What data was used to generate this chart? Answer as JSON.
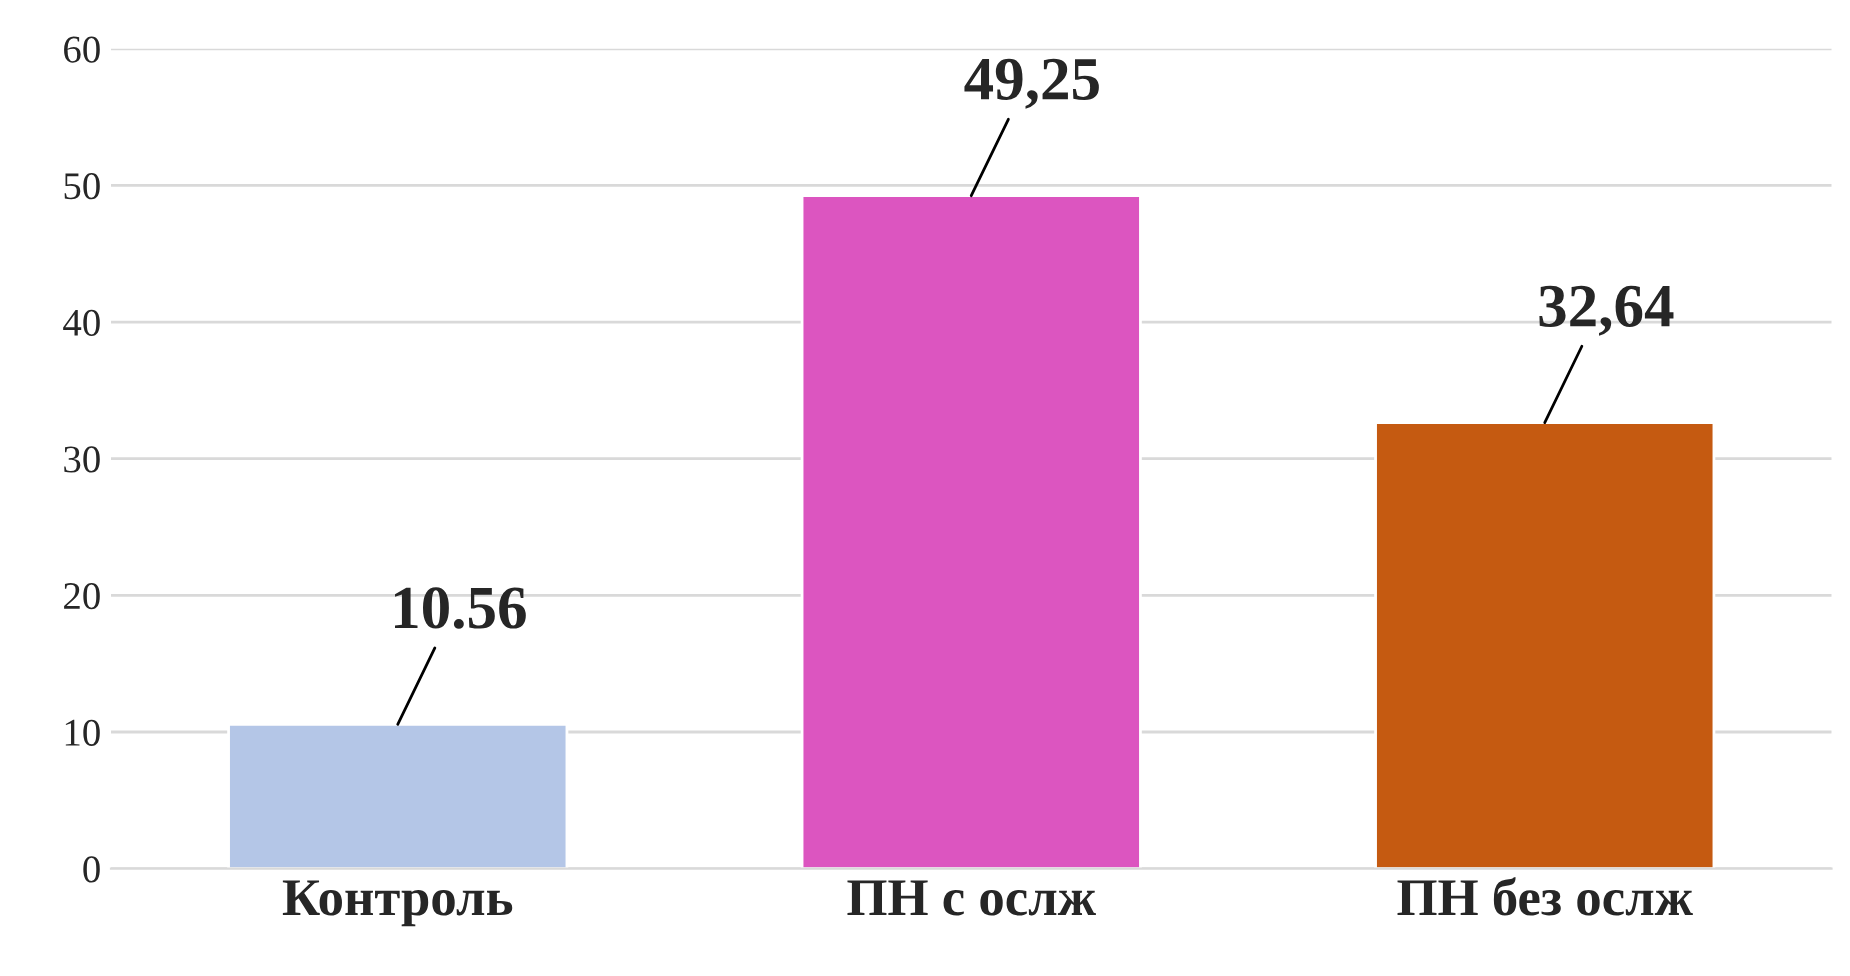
{
  "chart_data": {
    "type": "bar",
    "categories": [
      "Контроль",
      "ПН с ослж",
      "ПН без ослж"
    ],
    "values": [
      10.56,
      49.25,
      32.64
    ],
    "colors": [
      "#b4c6e7",
      "#dc55c0",
      "#c55a11"
    ],
    "value_labels": [
      "10.56",
      "49,25",
      "32,64"
    ],
    "ylim": [
      0,
      60
    ],
    "yticks": [
      0,
      10,
      20,
      30,
      40,
      50,
      60
    ],
    "grid": "y",
    "legend": false
  }
}
